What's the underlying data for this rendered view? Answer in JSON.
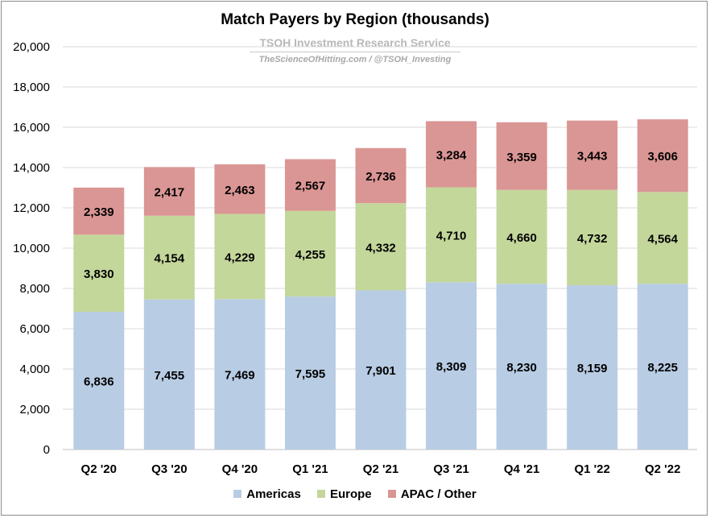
{
  "chart_data": {
    "type": "bar",
    "stacked": true,
    "title": "Match Payers by Region (thousands)",
    "watermark_line1": "TSOH Investment Research Service",
    "watermark_line2": "TheScienceOfHitting.com / @TSOH_Investing",
    "categories": [
      "Q2 '20",
      "Q3 '20",
      "Q4 '20",
      "Q1 '21",
      "Q2 '21",
      "Q3 '21",
      "Q4 '21",
      "Q1 '22",
      "Q2 '22"
    ],
    "series": [
      {
        "name": "Americas",
        "color": "#b8cce4",
        "values": [
          6836,
          7455,
          7469,
          7595,
          7901,
          8309,
          8230,
          8159,
          8225
        ]
      },
      {
        "name": "Europe",
        "color": "#c4d79b",
        "values": [
          3830,
          4154,
          4229,
          4255,
          4332,
          4710,
          4660,
          4732,
          4564
        ]
      },
      {
        "name": "APAC / Other",
        "color": "#da9694",
        "values": [
          2339,
          2417,
          2463,
          2567,
          2736,
          3284,
          3359,
          3443,
          3606
        ]
      }
    ],
    "ylim": [
      0,
      20000
    ],
    "yticks": [
      "0",
      "2,000",
      "4,000",
      "6,000",
      "8,000",
      "10,000",
      "12,000",
      "14,000",
      "16,000",
      "18,000",
      "20,000"
    ],
    "grid": true,
    "legend_position": "bottom"
  }
}
